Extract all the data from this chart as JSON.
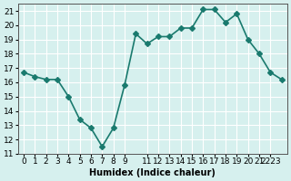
{
  "x": [
    0,
    1,
    2,
    3,
    4,
    5,
    6,
    7,
    8,
    9,
    10,
    11,
    12,
    13,
    14,
    15,
    16,
    17,
    18,
    19,
    20,
    21,
    22,
    23
  ],
  "y": [
    16.7,
    16.4,
    16.2,
    16.2,
    15.0,
    13.4,
    12.8,
    11.5,
    12.8,
    15.8,
    19.4,
    18.7,
    19.2,
    19.2,
    19.8,
    19.8,
    21.1,
    21.1,
    20.2,
    20.8,
    19.0,
    18.0,
    16.7,
    16.2
  ],
  "line_color": "#1a7a6e",
  "marker": "D",
  "marker_size": 3,
  "bg_color": "#d6f0ee",
  "grid_color": "#ffffff",
  "xlabel": "Humidex (Indice chaleur)",
  "xlim": [
    -0.5,
    23.5
  ],
  "ylim": [
    11,
    21.5
  ],
  "yticks": [
    11,
    12,
    13,
    14,
    15,
    16,
    17,
    18,
    19,
    20,
    21
  ],
  "xtick_positions": [
    0,
    1,
    2,
    3,
    4,
    5,
    6,
    7,
    8,
    9,
    11,
    12,
    13,
    14,
    15,
    16,
    17,
    18,
    19,
    20,
    21,
    22
  ],
  "xtick_labels": [
    "0",
    "1",
    "2",
    "3",
    "4",
    "5",
    "6",
    "7",
    "8",
    "9",
    "11",
    "12",
    "13",
    "14",
    "15",
    "16",
    "17",
    "18",
    "19",
    "20",
    "21",
    "2223"
  ],
  "label_fontsize": 7,
  "tick_fontsize": 6.5
}
